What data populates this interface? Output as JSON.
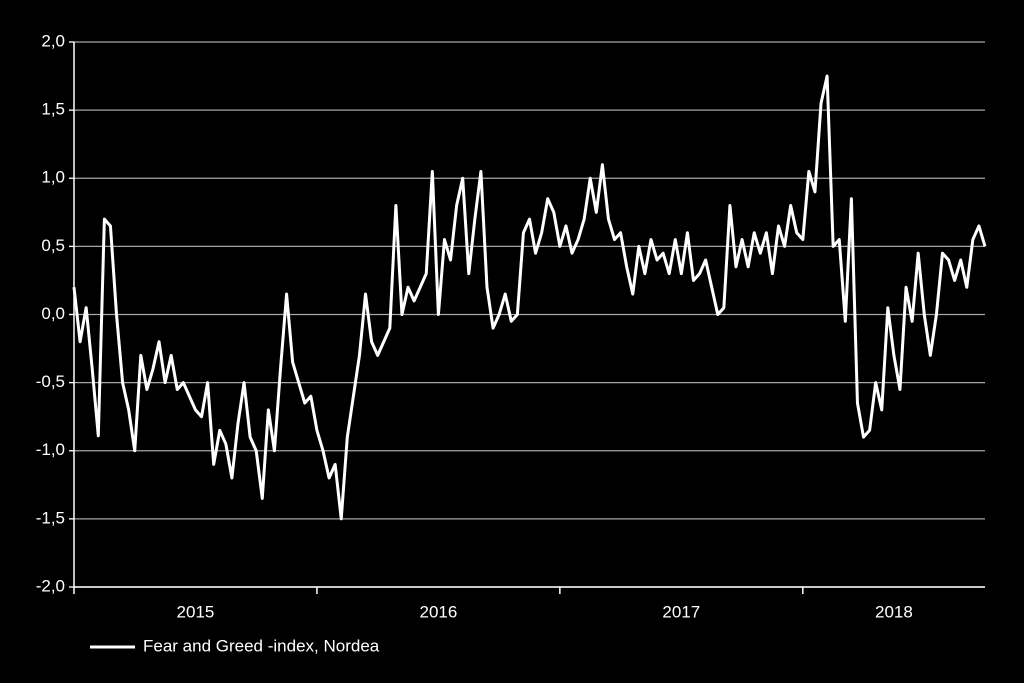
{
  "chart_data": {
    "type": "line",
    "x": [
      2015,
      2015.025,
      2015.05,
      2015.075,
      2015.1,
      2015.125,
      2015.15,
      2015.175,
      2015.2,
      2015.225,
      2015.25,
      2015.275,
      2015.3,
      2015.325,
      2015.35,
      2015.375,
      2015.4,
      2015.425,
      2015.45,
      2015.475,
      2015.5,
      2015.525,
      2015.55,
      2015.575,
      2015.6,
      2015.625,
      2015.65,
      2015.675,
      2015.7,
      2015.725,
      2015.75,
      2015.775,
      2015.8,
      2015.825,
      2015.85,
      2015.875,
      2015.9,
      2015.925,
      2015.95,
      2015.975,
      2016,
      2016.025,
      2016.05,
      2016.075,
      2016.1,
      2016.125,
      2016.15,
      2016.175,
      2016.2,
      2016.225,
      2016.25,
      2016.275,
      2016.3,
      2016.325,
      2016.35,
      2016.375,
      2016.4,
      2016.425,
      2016.45,
      2016.475,
      2016.5,
      2016.525,
      2016.55,
      2016.575,
      2016.6,
      2016.625,
      2016.65,
      2016.675,
      2016.7,
      2016.725,
      2016.75,
      2016.775,
      2016.8,
      2016.825,
      2016.85,
      2016.875,
      2016.9,
      2016.925,
      2016.95,
      2016.975,
      2017,
      2017.025,
      2017.05,
      2017.075,
      2017.1,
      2017.125,
      2017.15,
      2017.175,
      2017.2,
      2017.225,
      2017.25,
      2017.275,
      2017.3,
      2017.325,
      2017.35,
      2017.375,
      2017.4,
      2017.425,
      2017.45,
      2017.475,
      2017.5,
      2017.525,
      2017.55,
      2017.575,
      2017.6,
      2017.625,
      2017.65,
      2017.675,
      2017.7,
      2017.725,
      2017.75,
      2017.775,
      2017.8,
      2017.825,
      2017.85,
      2017.875,
      2017.9,
      2017.925,
      2017.95,
      2017.975,
      2018,
      2018.025,
      2018.05,
      2018.075,
      2018.1,
      2018.125,
      2018.15,
      2018.175,
      2018.2,
      2018.225,
      2018.25,
      2018.275,
      2018.3,
      2018.325,
      2018.35,
      2018.375,
      2018.4,
      2018.425,
      2018.45,
      2018.475,
      2018.5,
      2018.525,
      2018.55,
      2018.575,
      2018.6,
      2018.625,
      2018.65,
      2018.675,
      2018.7,
      2018.725,
      2018.75
    ],
    "series": [
      {
        "name": "Fear and Greed -index, Nordea",
        "color": "#ffffff",
        "values": [
          0.2,
          -0.2,
          0.05,
          -0.4,
          -0.89,
          0.7,
          0.65,
          0,
          -0.5,
          -0.7,
          -1,
          -0.3,
          -0.55,
          -0.4,
          -0.2,
          -0.5,
          -0.3,
          -0.55,
          -0.5,
          -0.6,
          -0.7,
          -0.75,
          -0.5,
          -1.1,
          -0.85,
          -0.95,
          -1.2,
          -0.8,
          -0.5,
          -0.9,
          -1,
          -1.35,
          -0.7,
          -1,
          -0.4,
          0.15,
          -0.35,
          -0.5,
          -0.65,
          -0.6,
          -0.85,
          -1,
          -1.2,
          -1.1,
          -1.5,
          -0.9,
          -0.6,
          -0.3,
          0.15,
          -0.2,
          -0.3,
          -0.2,
          -0.1,
          0.8,
          0,
          0.2,
          0.1,
          0.2,
          0.3,
          1.05,
          0,
          0.55,
          0.4,
          0.8,
          1,
          0.3,
          0.7,
          1.05,
          0.2,
          -0.1,
          0,
          0.15,
          -0.05,
          0,
          0.6,
          0.7,
          0.45,
          0.6,
          0.85,
          0.75,
          0.5,
          0.65,
          0.45,
          0.55,
          0.7,
          1,
          0.75,
          1.1,
          0.7,
          0.55,
          0.6,
          0.35,
          0.15,
          0.5,
          0.3,
          0.55,
          0.4,
          0.45,
          0.3,
          0.55,
          0.3,
          0.6,
          0.25,
          0.3,
          0.4,
          0.2,
          0,
          0.05,
          0.8,
          0.35,
          0.55,
          0.35,
          0.6,
          0.45,
          0.6,
          0.3,
          0.65,
          0.5,
          0.8,
          0.6,
          0.55,
          1.05,
          0.9,
          1.55,
          1.75,
          0.5,
          0.55,
          -0.05,
          0.85,
          -0.65,
          -0.9,
          -0.85,
          -0.5,
          -0.7,
          0.05,
          -0.3,
          -0.55,
          0.2,
          -0.05,
          0.45,
          0,
          -0.3,
          0,
          0.45,
          0.4,
          0.25,
          0.4,
          0.2,
          0.55,
          0.65,
          0.5
        ]
      }
    ],
    "xlim": [
      2015,
      2018.75
    ],
    "xticks": [
      2015,
      2016,
      2017,
      2018
    ],
    "ylim": [
      -2,
      2
    ],
    "yticks": [
      {
        "value": -2,
        "label": "-2,0"
      },
      {
        "value": -1.5,
        "label": "-1,5"
      },
      {
        "value": -1,
        "label": "-1,0"
      },
      {
        "value": -0.5,
        "label": "-0,5"
      },
      {
        "value": 0,
        "label": "0,0"
      },
      {
        "value": 0.5,
        "label": "0,5"
      },
      {
        "value": 1,
        "label": "1,0"
      },
      {
        "value": 1.5,
        "label": "1,5"
      },
      {
        "value": 2,
        "label": "2,0"
      }
    ],
    "grid": true,
    "legend": "bottom-left"
  }
}
